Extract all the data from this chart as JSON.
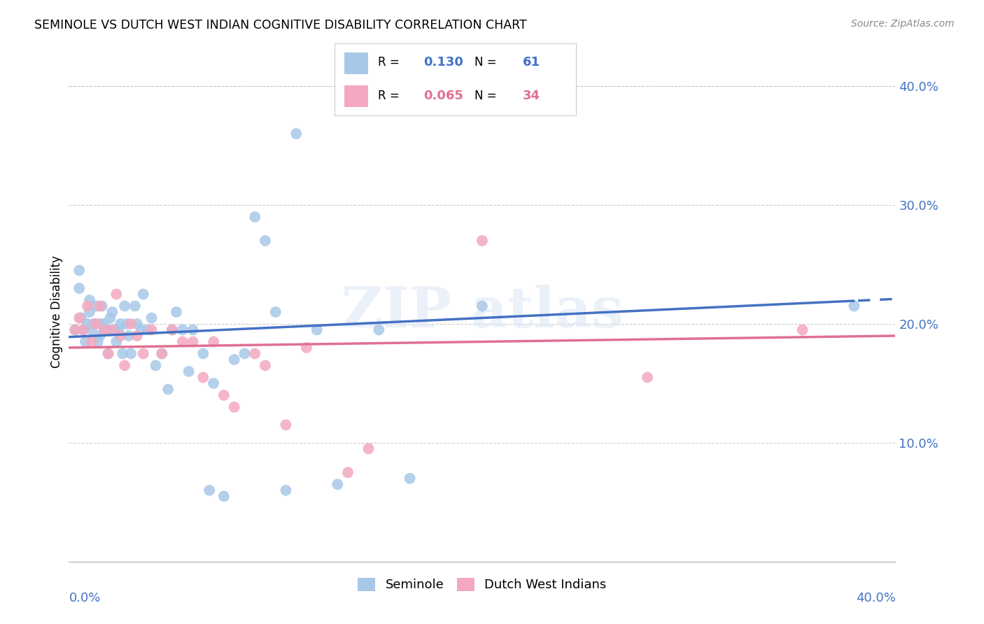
{
  "title": "SEMINOLE VS DUTCH WEST INDIAN COGNITIVE DISABILITY CORRELATION CHART",
  "source": "Source: ZipAtlas.com",
  "ylabel": "Cognitive Disability",
  "xlim": [
    0.0,
    0.4
  ],
  "ylim": [
    0.0,
    0.42
  ],
  "ytick_vals": [
    0.1,
    0.2,
    0.3,
    0.4
  ],
  "ytick_labels": [
    "10.0%",
    "20.0%",
    "30.0%",
    "40.0%"
  ],
  "seminole_R": "0.130",
  "seminole_N": "61",
  "dutch_R": "0.065",
  "dutch_N": "34",
  "seminole_color": "#a8c8e8",
  "dutch_color": "#f4a8c0",
  "seminole_line_color": "#4472c4",
  "dutch_line_color": "#e07090",
  "seminole_x": [
    0.003,
    0.005,
    0.005,
    0.006,
    0.007,
    0.008,
    0.009,
    0.01,
    0.01,
    0.011,
    0.012,
    0.013,
    0.014,
    0.015,
    0.015,
    0.016,
    0.017,
    0.018,
    0.019,
    0.02,
    0.021,
    0.022,
    0.023,
    0.024,
    0.025,
    0.026,
    0.027,
    0.028,
    0.029,
    0.03,
    0.032,
    0.033,
    0.035,
    0.036,
    0.038,
    0.04,
    0.042,
    0.045,
    0.048,
    0.05,
    0.052,
    0.055,
    0.058,
    0.06,
    0.065,
    0.068,
    0.07,
    0.075,
    0.08,
    0.085,
    0.09,
    0.095,
    0.1,
    0.105,
    0.11,
    0.12,
    0.13,
    0.15,
    0.165,
    0.2,
    0.38
  ],
  "seminole_y": [
    0.195,
    0.245,
    0.23,
    0.205,
    0.195,
    0.185,
    0.2,
    0.22,
    0.21,
    0.195,
    0.2,
    0.215,
    0.185,
    0.2,
    0.19,
    0.215,
    0.2,
    0.195,
    0.175,
    0.205,
    0.21,
    0.195,
    0.185,
    0.195,
    0.2,
    0.175,
    0.215,
    0.2,
    0.19,
    0.175,
    0.215,
    0.2,
    0.195,
    0.225,
    0.195,
    0.205,
    0.165,
    0.175,
    0.145,
    0.195,
    0.21,
    0.195,
    0.16,
    0.195,
    0.175,
    0.06,
    0.15,
    0.055,
    0.17,
    0.175,
    0.29,
    0.27,
    0.21,
    0.06,
    0.36,
    0.195,
    0.065,
    0.195,
    0.07,
    0.215,
    0.215
  ],
  "dutch_x": [
    0.003,
    0.005,
    0.007,
    0.009,
    0.011,
    0.013,
    0.015,
    0.017,
    0.019,
    0.021,
    0.023,
    0.025,
    0.027,
    0.03,
    0.033,
    0.036,
    0.04,
    0.045,
    0.05,
    0.055,
    0.06,
    0.065,
    0.07,
    0.075,
    0.08,
    0.09,
    0.095,
    0.105,
    0.115,
    0.135,
    0.145,
    0.2,
    0.28,
    0.355
  ],
  "dutch_y": [
    0.195,
    0.205,
    0.195,
    0.215,
    0.185,
    0.2,
    0.215,
    0.195,
    0.175,
    0.195,
    0.225,
    0.19,
    0.165,
    0.2,
    0.19,
    0.175,
    0.195,
    0.175,
    0.195,
    0.185,
    0.185,
    0.155,
    0.185,
    0.14,
    0.13,
    0.175,
    0.165,
    0.115,
    0.18,
    0.075,
    0.095,
    0.27,
    0.155,
    0.195
  ],
  "line_intercept_seminole": 0.189,
  "line_slope_seminole": 0.08,
  "line_intercept_dutch": 0.18,
  "line_slope_dutch": 0.025
}
